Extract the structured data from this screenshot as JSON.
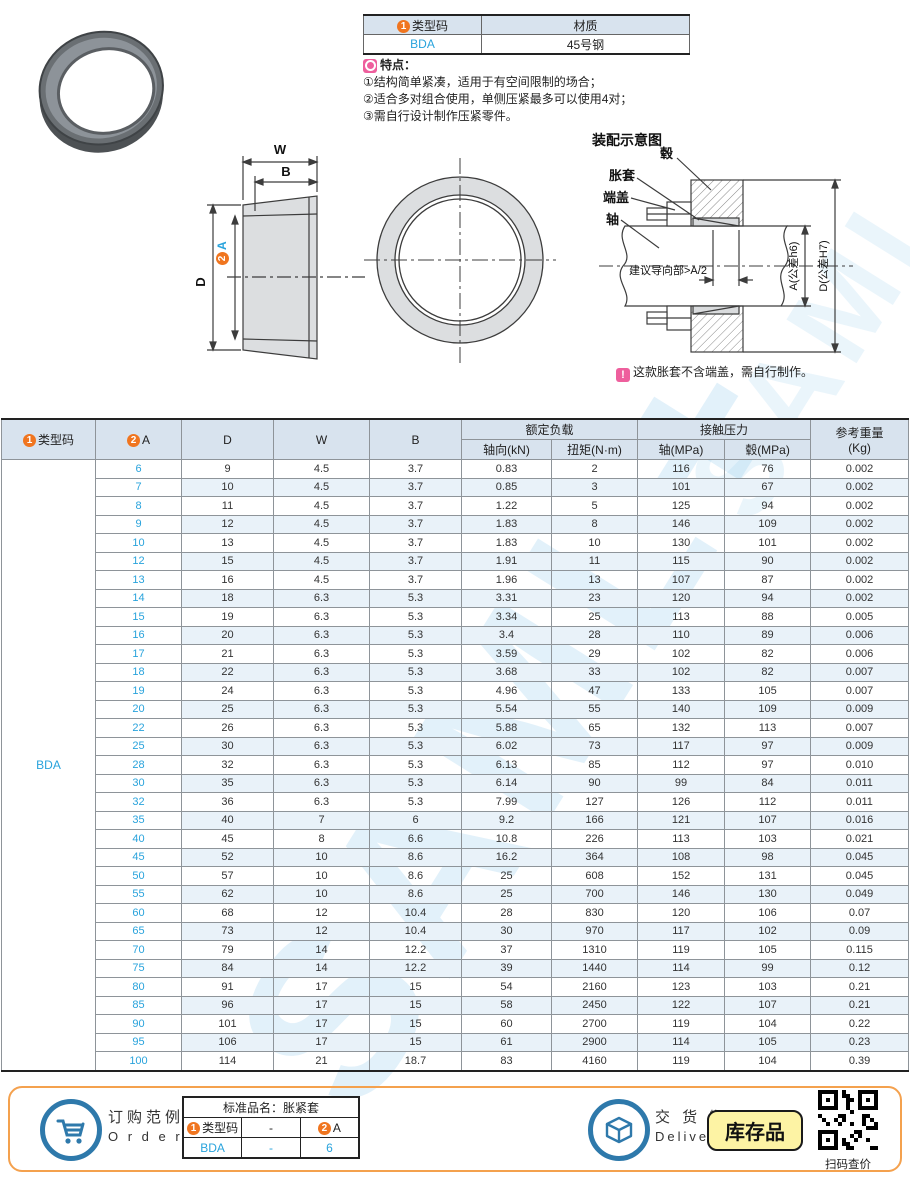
{
  "watermark_text": "SAML+",
  "product_info": {
    "badge1": "1",
    "code_header": "类型码",
    "material_header": "材质",
    "code_value": "BDA",
    "material_value": "45号钢",
    "features_title": "特点：",
    "features": [
      "①结构简单紧凑，适用于有空间限制的场合；",
      "②适合多对组合使用，单侧压紧最多可以使用4对；",
      "③需自行设计制作压紧零件。"
    ]
  },
  "side_view": {
    "dim_w": "W",
    "dim_b": "B",
    "dim_d": "D",
    "dim_a": "A",
    "badge2": "2"
  },
  "assembly": {
    "title": "装配示意图",
    "label_hub": "毂",
    "label_sleeve": "胀套",
    "label_cap": "端盖",
    "label_shaft": "轴",
    "guide_text": "建议导向部>A/2",
    "dim_a": "A(公差h6)",
    "dim_d": "D(公差H7)",
    "note_mark": "!",
    "note": "这款胀套不含端盖，需自行制作。"
  },
  "table": {
    "type_code": "BDA",
    "headers": {
      "badge1": "1",
      "badge2": "2",
      "type_code": "类型码",
      "a": "A",
      "d": "D",
      "w": "W",
      "b": "B",
      "load_group": "额定负载",
      "axial": "轴向(kN)",
      "torque": "扭矩(N·m)",
      "pressure_group": "接触压力",
      "shaft": "轴(MPa)",
      "hub": "毂(MPa)",
      "weight_line1": "参考重量",
      "weight_line2": "(Kg)"
    },
    "rows": [
      [
        "6",
        "9",
        "4.5",
        "3.7",
        "0.83",
        "2",
        "116",
        "76",
        "0.002"
      ],
      [
        "7",
        "10",
        "4.5",
        "3.7",
        "0.85",
        "3",
        "101",
        "67",
        "0.002"
      ],
      [
        "8",
        "11",
        "4.5",
        "3.7",
        "1.22",
        "5",
        "125",
        "94",
        "0.002"
      ],
      [
        "9",
        "12",
        "4.5",
        "3.7",
        "1.83",
        "8",
        "146",
        "109",
        "0.002"
      ],
      [
        "10",
        "13",
        "4.5",
        "3.7",
        "1.83",
        "10",
        "130",
        "101",
        "0.002"
      ],
      [
        "12",
        "15",
        "4.5",
        "3.7",
        "1.91",
        "11",
        "115",
        "90",
        "0.002"
      ],
      [
        "13",
        "16",
        "4.5",
        "3.7",
        "1.96",
        "13",
        "107",
        "87",
        "0.002"
      ],
      [
        "14",
        "18",
        "6.3",
        "5.3",
        "3.31",
        "23",
        "120",
        "94",
        "0.002"
      ],
      [
        "15",
        "19",
        "6.3",
        "5.3",
        "3.34",
        "25",
        "113",
        "88",
        "0.005"
      ],
      [
        "16",
        "20",
        "6.3",
        "5.3",
        "3.4",
        "28",
        "110",
        "89",
        "0.006"
      ],
      [
        "17",
        "21",
        "6.3",
        "5.3",
        "3.59",
        "29",
        "102",
        "82",
        "0.006"
      ],
      [
        "18",
        "22",
        "6.3",
        "5.3",
        "3.68",
        "33",
        "102",
        "82",
        "0.007"
      ],
      [
        "19",
        "24",
        "6.3",
        "5.3",
        "4.96",
        "47",
        "133",
        "105",
        "0.007"
      ],
      [
        "20",
        "25",
        "6.3",
        "5.3",
        "5.54",
        "55",
        "140",
        "109",
        "0.009"
      ],
      [
        "22",
        "26",
        "6.3",
        "5.3",
        "5.88",
        "65",
        "132",
        "113",
        "0.007"
      ],
      [
        "25",
        "30",
        "6.3",
        "5.3",
        "6.02",
        "73",
        "117",
        "97",
        "0.009"
      ],
      [
        "28",
        "32",
        "6.3",
        "5.3",
        "6.13",
        "85",
        "112",
        "97",
        "0.010"
      ],
      [
        "30",
        "35",
        "6.3",
        "5.3",
        "6.14",
        "90",
        "99",
        "84",
        "0.011"
      ],
      [
        "32",
        "36",
        "6.3",
        "5.3",
        "7.99",
        "127",
        "126",
        "112",
        "0.011"
      ],
      [
        "35",
        "40",
        "7",
        "6",
        "9.2",
        "166",
        "121",
        "107",
        "0.016"
      ],
      [
        "40",
        "45",
        "8",
        "6.6",
        "10.8",
        "226",
        "113",
        "103",
        "0.021"
      ],
      [
        "45",
        "52",
        "10",
        "8.6",
        "16.2",
        "364",
        "108",
        "98",
        "0.045"
      ],
      [
        "50",
        "57",
        "10",
        "8.6",
        "25",
        "608",
        "152",
        "131",
        "0.045"
      ],
      [
        "55",
        "62",
        "10",
        "8.6",
        "25",
        "700",
        "146",
        "130",
        "0.049"
      ],
      [
        "60",
        "68",
        "12",
        "10.4",
        "28",
        "830",
        "120",
        "106",
        "0.07"
      ],
      [
        "65",
        "73",
        "12",
        "10.4",
        "30",
        "970",
        "117",
        "102",
        "0.09"
      ],
      [
        "70",
        "79",
        "14",
        "12.2",
        "37",
        "1310",
        "119",
        "105",
        "0.115"
      ],
      [
        "75",
        "84",
        "14",
        "12.2",
        "39",
        "1440",
        "114",
        "99",
        "0.12"
      ],
      [
        "80",
        "91",
        "17",
        "15",
        "54",
        "2160",
        "123",
        "103",
        "0.21"
      ],
      [
        "85",
        "96",
        "17",
        "15",
        "58",
        "2450",
        "122",
        "107",
        "0.21"
      ],
      [
        "90",
        "101",
        "17",
        "15",
        "60",
        "2700",
        "119",
        "104",
        "0.22"
      ],
      [
        "95",
        "106",
        "17",
        "15",
        "61",
        "2900",
        "114",
        "105",
        "0.23"
      ],
      [
        "100",
        "114",
        "21",
        "18.7",
        "83",
        "4160",
        "119",
        "104",
        "0.39"
      ]
    ]
  },
  "footer": {
    "order_title": "订购范例",
    "order_en": "O r d e r",
    "order_table": {
      "title": "标准品名：胀紧套",
      "badge1": "1",
      "badge2": "2",
      "col_code": "类型码",
      "col_dash": "-",
      "col_a": "A",
      "val_code": "BDA",
      "val_dash": "-",
      "val_a": "6"
    },
    "delivery_title": "交 货 期",
    "delivery_en": "Delivery",
    "stock_badge": "库存品",
    "qr_caption": "扫码查价"
  },
  "colors": {
    "accent_blue": "#29a3dc",
    "badge_orange": "#f0751f",
    "header_bg": "#d8e3ee",
    "alt_row_bg": "#e9f2f9",
    "footer_border": "#f4a14e",
    "stock_bg": "#fdf3a4",
    "icon_blue": "#2e79ab",
    "note_pink": "#ee5f9d"
  }
}
